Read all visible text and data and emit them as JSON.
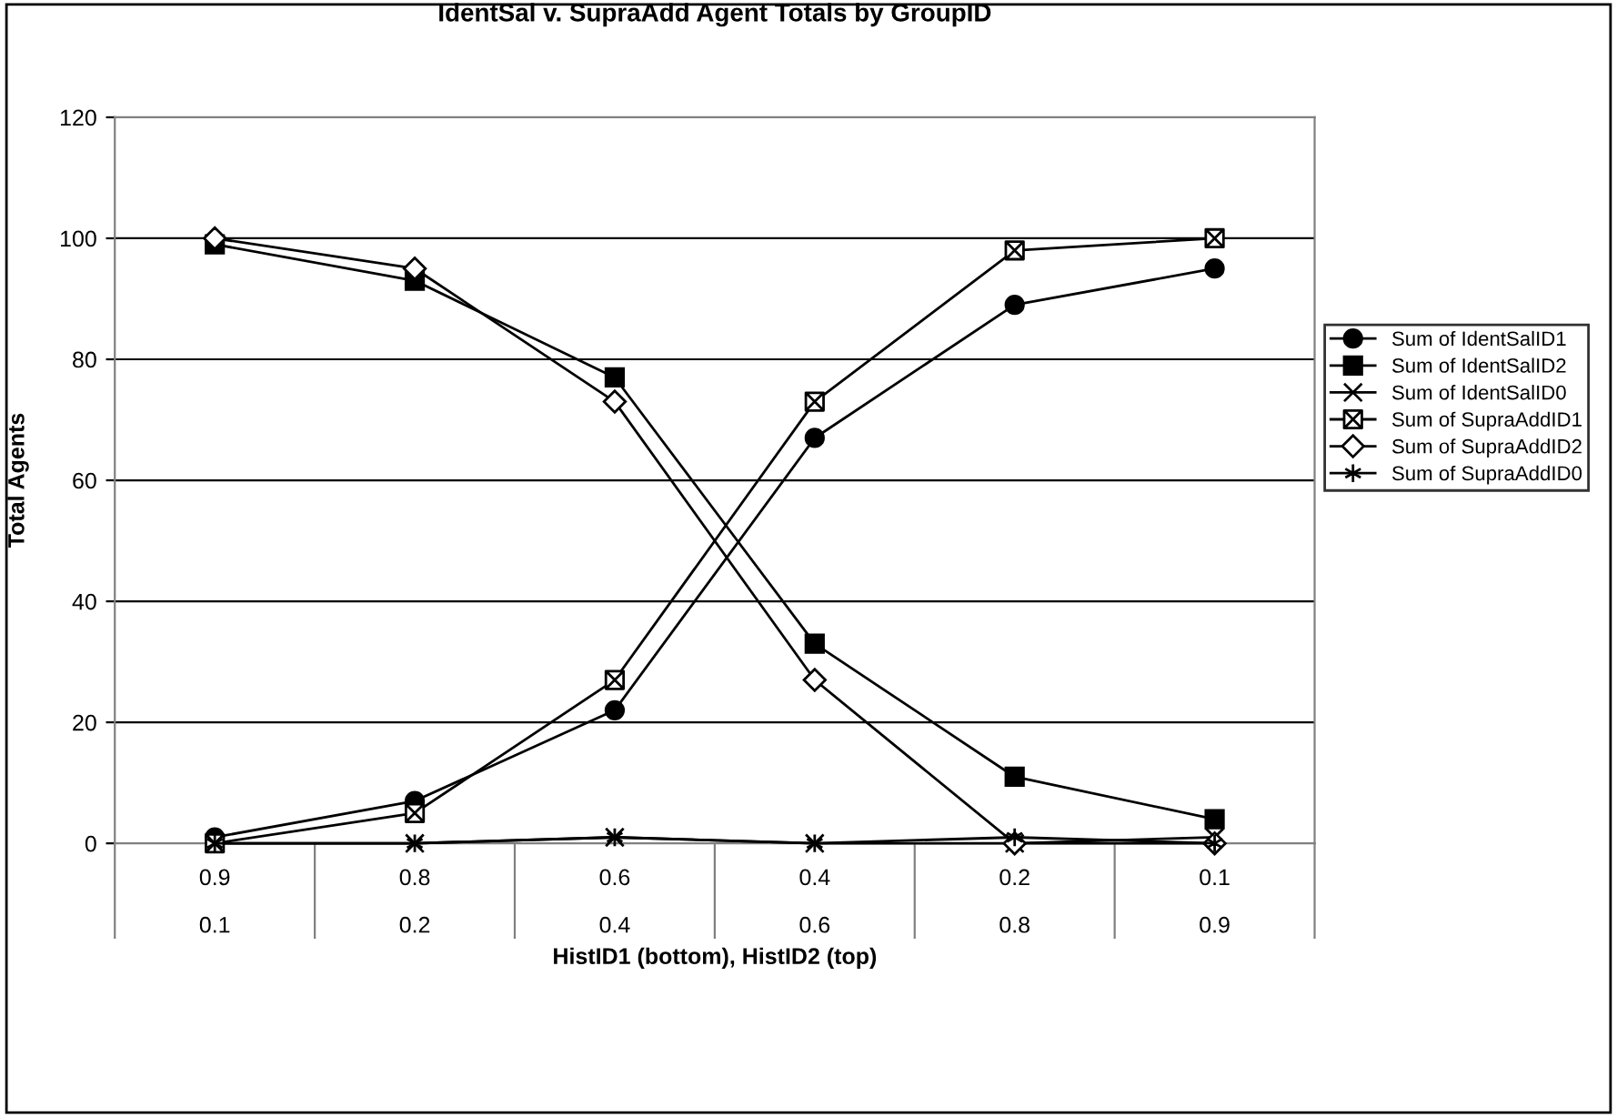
{
  "chart_data": {
    "type": "line",
    "title": "IdentSal v. SupraAdd Agent Totals by GroupID",
    "xlabel": "HistID1 (bottom), HistID2 (top)",
    "ylabel": "Total Agents",
    "categories": [
      "0.9\n0.1",
      "0.8\n0.2",
      "0.6\n0.4",
      "0.4\n0.6",
      "0.2\n0.8",
      "0.1\n0.9"
    ],
    "series": [
      {
        "name": "Sum of IdentSalID1",
        "color": "#000000",
        "marker": "circle",
        "values": [
          1,
          7,
          22,
          67,
          89,
          95
        ]
      },
      {
        "name": "Sum of IdentSalID2",
        "color": "#000000",
        "marker": "square",
        "values": [
          99,
          93,
          77,
          33,
          11,
          4
        ]
      },
      {
        "name": "Sum of IdentSalID0",
        "color": "#000000",
        "marker": "cross",
        "values": [
          0,
          0,
          1,
          0,
          0,
          1
        ]
      },
      {
        "name": "Sum of SupraAddID1",
        "color": "#000000",
        "marker": "cross",
        "values": [
          0,
          5,
          27,
          73,
          98,
          100
        ]
      },
      {
        "name": "Sum of SupraAddID2",
        "color": "#000000",
        "marker": "diamond",
        "values": [
          100,
          95,
          73,
          27,
          0,
          0
        ]
      },
      {
        "name": "Sum of SupraAddID0",
        "color": "#000000",
        "marker": "cross",
        "values": [
          0,
          0,
          1,
          0,
          1,
          0
        ]
      }
    ],
    "ylim": [
      0,
      120
    ],
    "yticks": [
      0,
      20,
      40,
      60,
      80,
      100,
      120
    ],
    "grid": "y",
    "legend": "right",
    "line_style": "solid"
  }
}
